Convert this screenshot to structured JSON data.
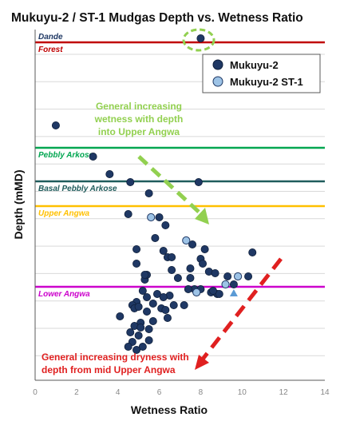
{
  "chart_data": {
    "type": "scatter",
    "title": "Mukuyu-2 / ST-1 Mudgas Depth vs. Wetness Ratio",
    "xlabel": "Wetness Ratio",
    "ylabel": "Depth (mMD)",
    "xlim": [
      0,
      14
    ],
    "xticks": [
      0,
      2,
      4,
      6,
      8,
      10,
      12,
      14
    ],
    "y_axis_labels": "none",
    "grid": "horizontal",
    "legend_position": "top-right",
    "colors": {
      "series_a": "#1f3864",
      "series_b": "#9dc3e6",
      "axis": "#595959",
      "gridline": "#d9d9d9",
      "green_arrow": "#92d050",
      "red_arrow": "#e02020",
      "highlight_circle": "#92d050",
      "triangle": "#5b9bd5"
    },
    "formations": [
      {
        "name": "Dande",
        "depth": 45,
        "line": false,
        "color": "#1f3864"
      },
      {
        "name": "Forest",
        "depth": 53,
        "line": true,
        "color": "#c00000"
      },
      {
        "name": "Pebbly Arkose",
        "depth": 185,
        "line": true,
        "color": "#00a650"
      },
      {
        "name": "Basal Pebbly Arkose",
        "depth": 227,
        "line": true,
        "color": "#1f5c5c"
      },
      {
        "name": "Upper Angwa",
        "depth": 258,
        "line": true,
        "color": "#ffc000"
      },
      {
        "name": "Lower Angwa",
        "depth": 359,
        "line": true,
        "color": "#cc00cc"
      }
    ],
    "depth_range": [
      40,
      440
    ],
    "series": [
      {
        "name": "Mukuyu-2",
        "points": [
          [
            8.0,
            48
          ],
          [
            1.0,
            157
          ],
          [
            2.8,
            196
          ],
          [
            3.6,
            218
          ],
          [
            4.6,
            228
          ],
          [
            5.5,
            242
          ],
          [
            7.9,
            228
          ],
          [
            4.5,
            268
          ],
          [
            6.0,
            272
          ],
          [
            6.3,
            282
          ],
          [
            7.6,
            306
          ],
          [
            8.2,
            312
          ],
          [
            4.9,
            312
          ],
          [
            5.8,
            298
          ],
          [
            6.2,
            314
          ],
          [
            6.4,
            322
          ],
          [
            6.6,
            322
          ],
          [
            8.0,
            324
          ],
          [
            10.5,
            316
          ],
          [
            4.9,
            330
          ],
          [
            8.1,
            330
          ],
          [
            7.5,
            336
          ],
          [
            9.3,
            346
          ],
          [
            10.3,
            346
          ],
          [
            8.4,
            340
          ],
          [
            5.3,
            350
          ],
          [
            5.4,
            344
          ],
          [
            6.9,
            348
          ],
          [
            6.6,
            338
          ],
          [
            7.5,
            348
          ],
          [
            8.7,
            342
          ],
          [
            5.3,
            344
          ],
          [
            9.6,
            356
          ],
          [
            5.2,
            364
          ],
          [
            5.9,
            368
          ],
          [
            6.5,
            370
          ],
          [
            6.2,
            372
          ],
          [
            7.7,
            362
          ],
          [
            8.5,
            366
          ],
          [
            8.8,
            368
          ],
          [
            8.9,
            368
          ],
          [
            7.4,
            362
          ],
          [
            4.9,
            378
          ],
          [
            5.4,
            372
          ],
          [
            5.7,
            380
          ],
          [
            6.7,
            382
          ],
          [
            7.2,
            382
          ],
          [
            8.6,
            364
          ],
          [
            8.0,
            362
          ],
          [
            4.7,
            382
          ],
          [
            4.8,
            386
          ],
          [
            5.0,
            384
          ],
          [
            6.1,
            386
          ],
          [
            6.3,
            388
          ],
          [
            5.4,
            390
          ],
          [
            4.1,
            396
          ],
          [
            6.4,
            398
          ],
          [
            5.1,
            404
          ],
          [
            5.7,
            402
          ],
          [
            4.8,
            408
          ],
          [
            5.1,
            410
          ],
          [
            5.5,
            412
          ],
          [
            4.6,
            416
          ],
          [
            5.0,
            420
          ],
          [
            5.5,
            426
          ],
          [
            4.7,
            428
          ],
          [
            4.5,
            434
          ],
          [
            5.2,
            434
          ],
          [
            4.9,
            438
          ]
        ]
      },
      {
        "name": "Mukuyu-2 ST-1",
        "points": [
          [
            5.6,
            272
          ],
          [
            7.3,
            301
          ],
          [
            9.8,
            346
          ],
          [
            9.2,
            356
          ],
          [
            7.8,
            366
          ]
        ]
      }
    ],
    "triangle_point": [
      9.6,
      367
    ],
    "annotations": [
      {
        "id": "green",
        "lines": [
          "General increasing",
          "wetness with depth",
          "into Upper Angwa"
        ]
      },
      {
        "id": "red",
        "lines": [
          "General increasing dryness with",
          "depth from mid Upper Angwa"
        ]
      }
    ]
  }
}
